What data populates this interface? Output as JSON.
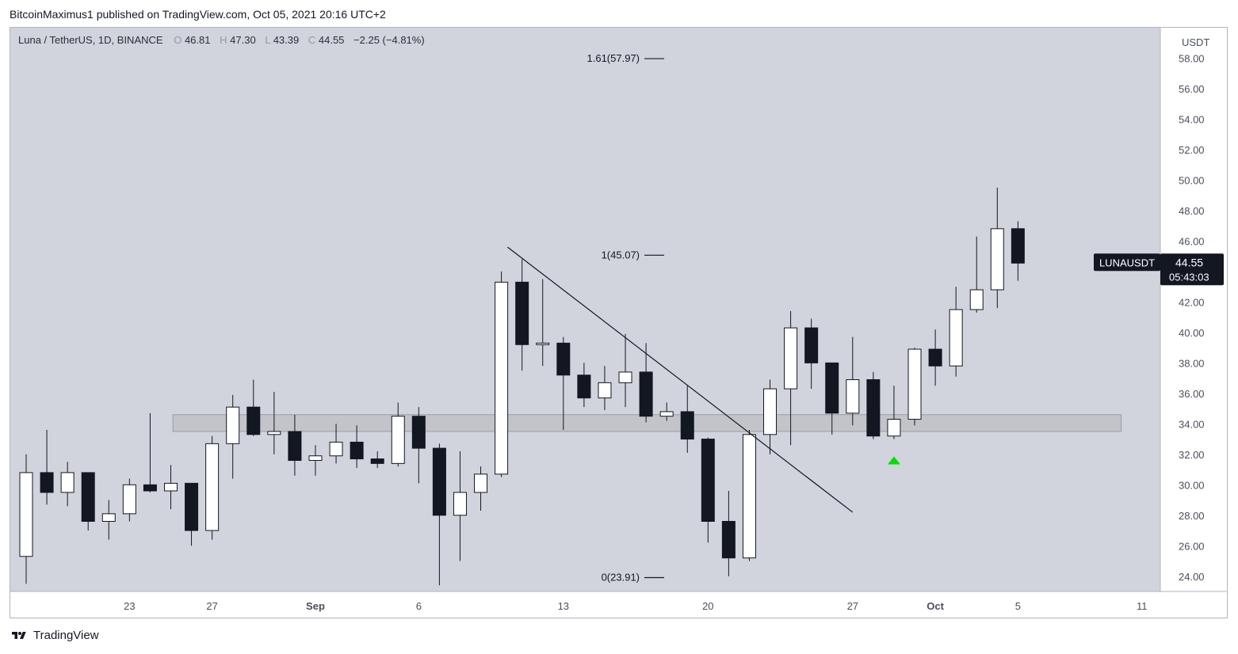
{
  "publisher": "BitcoinMaximus1 published on TradingView.com, Oct 05, 2021 20:16 UTC+2",
  "footer": {
    "brand": "TradingView"
  },
  "chart_data": {
    "type": "candlestick",
    "legend": {
      "symbol": "Luna / TetherUS, 1D, BINANCE",
      "o_label": "O",
      "o": "46.81",
      "h_label": "H",
      "h": "47.30",
      "l_label": "L",
      "l": "43.39",
      "c_label": "C",
      "c": "44.55",
      "change": "−2.25 (−4.81%)"
    },
    "currency": "USDT",
    "ylim": [
      23.0,
      60.0
    ],
    "y_ticks": [
      "24.00",
      "26.00",
      "28.00",
      "30.00",
      "32.00",
      "34.00",
      "36.00",
      "38.00",
      "40.00",
      "42.00",
      "44.00",
      "46.00",
      "48.00",
      "50.00",
      "52.00",
      "54.00",
      "56.00",
      "58.00"
    ],
    "x_ticks": [
      {
        "label": "23",
        "day": 23
      },
      {
        "label": "27",
        "day": 27
      },
      {
        "label": "Sep",
        "day": 32
      },
      {
        "label": "6",
        "day": 37
      },
      {
        "label": "13",
        "day": 44
      },
      {
        "label": "20",
        "day": 51
      },
      {
        "label": "27",
        "day": 58
      },
      {
        "label": "Oct",
        "day": 62
      },
      {
        "label": "5",
        "day": 66
      },
      {
        "label": "11",
        "day": 72
      }
    ],
    "candles": [
      {
        "d": 18,
        "o": 25.3,
        "h": 32.0,
        "l": 23.5,
        "c": 30.8
      },
      {
        "d": 19,
        "o": 30.8,
        "h": 33.6,
        "l": 28.7,
        "c": 29.5
      },
      {
        "d": 20,
        "o": 29.5,
        "h": 31.5,
        "l": 28.6,
        "c": 30.8
      },
      {
        "d": 21,
        "o": 30.8,
        "h": 30.8,
        "l": 27.0,
        "c": 27.6
      },
      {
        "d": 22,
        "o": 27.6,
        "h": 29.0,
        "l": 26.4,
        "c": 28.1
      },
      {
        "d": 23,
        "o": 28.1,
        "h": 30.4,
        "l": 27.6,
        "c": 30.0
      },
      {
        "d": 24,
        "o": 30.0,
        "h": 34.7,
        "l": 29.5,
        "c": 29.6
      },
      {
        "d": 25,
        "o": 29.6,
        "h": 31.3,
        "l": 28.4,
        "c": 30.1
      },
      {
        "d": 26,
        "o": 30.1,
        "h": 30.1,
        "l": 26.0,
        "c": 27.0
      },
      {
        "d": 27,
        "o": 27.0,
        "h": 33.2,
        "l": 26.4,
        "c": 32.7
      },
      {
        "d": 28,
        "o": 32.7,
        "h": 35.9,
        "l": 30.4,
        "c": 35.1
      },
      {
        "d": 29,
        "o": 35.1,
        "h": 36.9,
        "l": 33.2,
        "c": 33.3
      },
      {
        "d": 30,
        "o": 33.3,
        "h": 36.1,
        "l": 32.0,
        "c": 33.5
      },
      {
        "d": 31,
        "o": 33.5,
        "h": 34.6,
        "l": 30.6,
        "c": 31.6
      },
      {
        "d": 32,
        "o": 31.6,
        "h": 32.6,
        "l": 30.6,
        "c": 31.9
      },
      {
        "d": 33,
        "o": 31.9,
        "h": 34.0,
        "l": 31.4,
        "c": 32.8
      },
      {
        "d": 34,
        "o": 32.8,
        "h": 33.9,
        "l": 31.1,
        "c": 31.7
      },
      {
        "d": 35,
        "o": 31.7,
        "h": 32.2,
        "l": 31.1,
        "c": 31.4
      },
      {
        "d": 36,
        "o": 31.4,
        "h": 35.4,
        "l": 31.2,
        "c": 34.5
      },
      {
        "d": 37,
        "o": 34.5,
        "h": 35.1,
        "l": 30.1,
        "c": 32.4
      },
      {
        "d": 38,
        "o": 32.4,
        "h": 32.7,
        "l": 23.4,
        "c": 28.0
      },
      {
        "d": 39,
        "o": 28.0,
        "h": 32.2,
        "l": 25.0,
        "c": 29.5
      },
      {
        "d": 40,
        "o": 29.5,
        "h": 31.2,
        "l": 28.3,
        "c": 30.7
      },
      {
        "d": 41,
        "o": 30.7,
        "h": 44.0,
        "l": 30.5,
        "c": 43.3
      },
      {
        "d": 42,
        "o": 43.3,
        "h": 44.8,
        "l": 37.5,
        "c": 39.2
      },
      {
        "d": 43,
        "o": 39.2,
        "h": 43.5,
        "l": 37.8,
        "c": 39.3
      },
      {
        "d": 44,
        "o": 39.3,
        "h": 39.7,
        "l": 33.6,
        "c": 37.2
      },
      {
        "d": 45,
        "o": 37.2,
        "h": 38.0,
        "l": 35.1,
        "c": 35.7
      },
      {
        "d": 46,
        "o": 35.7,
        "h": 37.8,
        "l": 34.9,
        "c": 36.7
      },
      {
        "d": 47,
        "o": 36.7,
        "h": 39.9,
        "l": 35.1,
        "c": 37.4
      },
      {
        "d": 48,
        "o": 37.4,
        "h": 39.3,
        "l": 34.1,
        "c": 34.5
      },
      {
        "d": 49,
        "o": 34.5,
        "h": 35.4,
        "l": 34.2,
        "c": 34.8
      },
      {
        "d": 50,
        "o": 34.8,
        "h": 36.5,
        "l": 32.1,
        "c": 33.0
      },
      {
        "d": 51,
        "o": 33.0,
        "h": 33.1,
        "l": 26.2,
        "c": 27.6
      },
      {
        "d": 52,
        "o": 27.6,
        "h": 29.6,
        "l": 24.0,
        "c": 25.2
      },
      {
        "d": 53,
        "o": 25.2,
        "h": 33.6,
        "l": 25.0,
        "c": 33.3
      },
      {
        "d": 54,
        "o": 33.3,
        "h": 36.9,
        "l": 32.0,
        "c": 36.3
      },
      {
        "d": 55,
        "o": 36.3,
        "h": 41.4,
        "l": 32.6,
        "c": 40.3
      },
      {
        "d": 56,
        "o": 40.3,
        "h": 40.9,
        "l": 36.3,
        "c": 38.0
      },
      {
        "d": 57,
        "o": 38.0,
        "h": 38.0,
        "l": 33.3,
        "c": 34.7
      },
      {
        "d": 58,
        "o": 34.7,
        "h": 39.7,
        "l": 33.9,
        "c": 36.9
      },
      {
        "d": 59,
        "o": 36.9,
        "h": 37.4,
        "l": 33.0,
        "c": 33.2
      },
      {
        "d": 60,
        "o": 33.2,
        "h": 36.5,
        "l": 33.0,
        "c": 34.3
      },
      {
        "d": 61,
        "o": 34.3,
        "h": 39.0,
        "l": 33.9,
        "c": 38.9
      },
      {
        "d": 62,
        "o": 38.9,
        "h": 40.2,
        "l": 36.5,
        "c": 37.8
      },
      {
        "d": 63,
        "o": 37.8,
        "h": 43.0,
        "l": 37.1,
        "c": 41.5
      },
      {
        "d": 64,
        "o": 41.5,
        "h": 46.3,
        "l": 41.3,
        "c": 42.8
      },
      {
        "d": 65,
        "o": 42.8,
        "h": 49.5,
        "l": 41.6,
        "c": 46.81
      },
      {
        "d": 66,
        "o": 46.81,
        "h": 47.3,
        "l": 43.39,
        "c": 44.55
      }
    ],
    "fib_levels": [
      {
        "label": "1.61(57.97)",
        "value": 57.97
      },
      {
        "label": "1(45.07)",
        "value": 45.07
      },
      {
        "label": "0(23.91)",
        "value": 23.91
      }
    ],
    "trendline": {
      "from": {
        "day": 41.3,
        "value": 45.6
      },
      "to": {
        "day": 58.0,
        "value": 28.2
      }
    },
    "support_zone": {
      "from_day": 25.1,
      "to_day": 71.0,
      "low": 33.5,
      "high": 34.6
    },
    "signal_marker": {
      "day": 60.0,
      "value": 31.6,
      "shape": "up-triangle",
      "color": "#00e000"
    },
    "price_label": {
      "symbol": "LUNAUSDT",
      "price": "44.55",
      "countdown": "05:43:03",
      "bg": "#131722",
      "text": "#ffffff"
    },
    "colors": {
      "plot_bg": "#d1d4dc",
      "up_body": "#ffffff",
      "down_body": "#131722",
      "wick": "#131722",
      "zone": "#bfc1c7"
    }
  }
}
